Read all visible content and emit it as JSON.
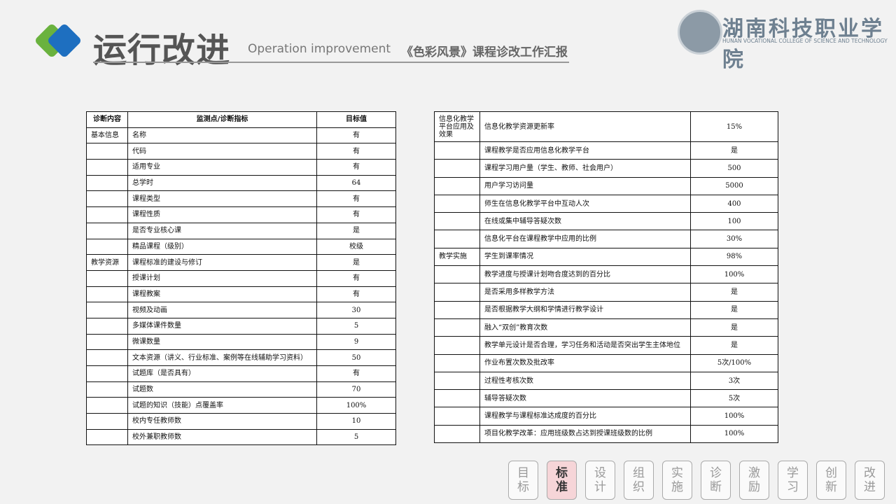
{
  "header": {
    "title": "运行改进",
    "subtitle": "Operation improvement",
    "report": "《色彩风景》课程诊改工作汇报",
    "logo_cn": "湖南科技职业学院",
    "logo_en": "HUNAN VOCATIONAL COLLEGE OF SCIENCE AND TECHNOLOGY"
  },
  "table_left": {
    "headers": [
      "诊断内容",
      "监测点/诊断指标",
      "目标值"
    ],
    "groups": [
      {
        "category": "基本信息",
        "items": [
          [
            "名称",
            "有"
          ],
          [
            "代码",
            "有"
          ],
          [
            "适用专业",
            "有"
          ],
          [
            "总学时",
            "64"
          ],
          [
            "课程类型",
            "有"
          ],
          [
            "课程性质",
            "有"
          ],
          [
            "是否专业核心课",
            "是"
          ],
          [
            "精品课程（级别）",
            "校级"
          ]
        ]
      },
      {
        "category": "教学资源",
        "items": [
          [
            "课程标准的建设与修订",
            "是"
          ],
          [
            "授课计划",
            "有"
          ],
          [
            "课程教案",
            "有"
          ],
          [
            "视频及动画",
            "30"
          ],
          [
            "多媒体课件数量",
            "5"
          ],
          [
            "微课数量",
            "9"
          ],
          [
            "文本资源（讲义、行业标准、案例等在线辅助学习资料）",
            "50"
          ],
          [
            "试题库（是否具有）",
            "有"
          ],
          [
            "试题数",
            "70"
          ],
          [
            "试题的知识（技能）点覆盖率",
            "100%"
          ],
          [
            "校内专任教师数",
            "10"
          ],
          [
            "校外兼职教师数",
            "5"
          ]
        ]
      }
    ]
  },
  "table_right": {
    "groups": [
      {
        "category": "信息化教学平台应用及效果",
        "items": [
          [
            "信息化教学资源更新率",
            "15%"
          ],
          [
            "课程教学是否应用信息化教学平台",
            "是"
          ],
          [
            "课程学习用户量（学生、教师、社会用户）",
            "500"
          ],
          [
            "用户学习访问量",
            "5000"
          ],
          [
            "师生在信息化教学平台中互动人次",
            "400"
          ],
          [
            "在线或集中辅导答疑次数",
            "100"
          ],
          [
            "信息化平台在课程教学中应用的比例",
            "30%"
          ]
        ]
      },
      {
        "category": "教学实施",
        "items": [
          [
            "学生到课率情况",
            "98%"
          ],
          [
            "教学进度与授课计划吻合度达到的百分比",
            "100%"
          ],
          [
            "是否采用多样教学方法",
            "是"
          ],
          [
            "是否根据教学大纲和学情进行教学设计",
            "是"
          ],
          [
            "融入“双创”教育次数",
            "是"
          ],
          [
            "教学单元设计是否合理，学习任务和活动是否突出学生主体地位",
            "是"
          ],
          [
            "作业布置次数及批改率",
            "5次/100%"
          ],
          [
            "过程性考核次数",
            "3次"
          ],
          [
            "辅导答疑次数",
            "5次"
          ],
          [
            "课程教学与课程标准达成度的百分比",
            "100%"
          ],
          [
            "项目化教学改革：应用班级数占达到授课班级数的比例",
            "100%"
          ]
        ]
      }
    ]
  },
  "nav": {
    "items": [
      "目标",
      "标准",
      "设计",
      "组织",
      "实施",
      "诊断",
      "激励",
      "学习",
      "创新",
      "改进"
    ],
    "active": 1
  }
}
